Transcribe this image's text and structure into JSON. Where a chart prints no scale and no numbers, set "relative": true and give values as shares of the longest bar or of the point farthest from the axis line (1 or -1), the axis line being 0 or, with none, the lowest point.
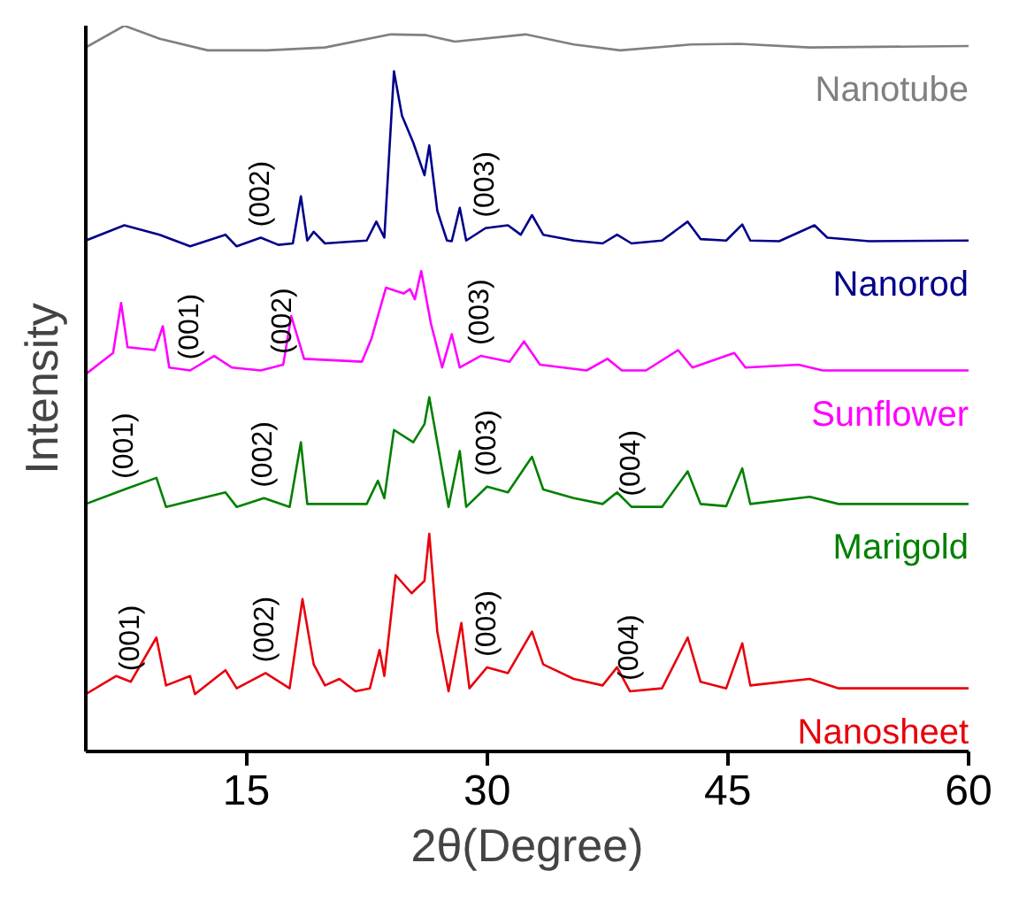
{
  "chart_data": {
    "type": "line",
    "xlabel": "2θ(Degree)",
    "ylabel": "Intensity",
    "relative": true,
    "xlim": [
      5,
      60
    ],
    "xticks": [
      15,
      30,
      45,
      60
    ],
    "tick_labels": "x",
    "grid": false,
    "marker": "none",
    "line_style": "solid",
    "series": [
      {
        "name": "Nanotube",
        "color": "#808080",
        "x": [
          5,
          7.4,
          9.6,
          12.6,
          16.3,
          19.9,
          24.0,
          26.2,
          28.0,
          32.4,
          35.4,
          38.3,
          42.7,
          45.7,
          50.1,
          60
        ],
        "values": [
          0.97,
          1.0,
          0.982,
          0.966,
          0.966,
          0.97,
          0.988,
          0.987,
          0.978,
          0.988,
          0.974,
          0.966,
          0.974,
          0.975,
          0.97,
          0.972
        ]
      },
      {
        "name": "Nanorod",
        "color": "#00008b",
        "x": [
          5,
          7.4,
          9.6,
          11.5,
          13.7,
          14.4,
          15.9,
          17.0,
          17.9,
          18.4,
          18.8,
          19.2,
          19.9,
          22.5,
          23.1,
          23.6,
          24.2,
          24.7,
          25.4,
          26.1,
          26.4,
          26.9,
          27.5,
          27.8,
          28.3,
          28.7,
          29.9,
          31.3,
          32.1,
          32.8,
          33.5,
          35.4,
          37.2,
          38.1,
          39.0,
          40.9,
          42.5,
          43.3,
          44.9,
          45.9,
          46.4,
          48.2,
          50.4,
          51.2,
          53.8,
          60
        ],
        "values": [
          0.704,
          0.725,
          0.712,
          0.696,
          0.712,
          0.696,
          0.708,
          0.698,
          0.7,
          0.765,
          0.704,
          0.716,
          0.7,
          0.704,
          0.73,
          0.708,
          0.937,
          0.876,
          0.839,
          0.794,
          0.835,
          0.745,
          0.704,
          0.703,
          0.749,
          0.704,
          0.721,
          0.725,
          0.712,
          0.739,
          0.712,
          0.704,
          0.7,
          0.712,
          0.7,
          0.704,
          0.73,
          0.706,
          0.704,
          0.726,
          0.704,
          0.703,
          0.725,
          0.708,
          0.703,
          0.704
        ]
      },
      {
        "name": "Sunflower",
        "color": "#ff00ff",
        "x": [
          5,
          6.7,
          7.2,
          7.6,
          9.3,
          9.8,
          10.2,
          11.5,
          13.0,
          14.1,
          15.9,
          17.3,
          17.8,
          18.6,
          22.2,
          22.8,
          23.7,
          24.8,
          25.2,
          25.5,
          25.9,
          26.5,
          27.2,
          27.8,
          28.3,
          29.6,
          31.4,
          32.3,
          33.3,
          36.2,
          37.5,
          38.4,
          39.9,
          41.9,
          42.8,
          45.4,
          46.1,
          49.4,
          50.9,
          60
        ],
        "values": [
          0.52,
          0.549,
          0.618,
          0.557,
          0.553,
          0.586,
          0.529,
          0.525,
          0.545,
          0.529,
          0.525,
          0.533,
          0.6,
          0.541,
          0.537,
          0.569,
          0.639,
          0.631,
          0.637,
          0.623,
          0.662,
          0.59,
          0.529,
          0.575,
          0.529,
          0.545,
          0.537,
          0.565,
          0.533,
          0.525,
          0.541,
          0.525,
          0.525,
          0.553,
          0.529,
          0.549,
          0.529,
          0.533,
          0.525,
          0.525
        ]
      },
      {
        "name": "Marigold",
        "color": "#008000",
        "x": [
          5,
          7.4,
          9.4,
          10.0,
          11.5,
          13.7,
          14.4,
          16.1,
          17.7,
          18.4,
          18.8,
          22.5,
          23.2,
          23.6,
          24.2,
          25.4,
          26.1,
          26.4,
          26.9,
          27.6,
          28.3,
          28.7,
          30.0,
          31.3,
          32.8,
          33.5,
          35.4,
          37.2,
          38.1,
          39.0,
          40.9,
          42.5,
          43.3,
          44.9,
          45.9,
          46.4,
          50.1,
          51.9,
          60
        ],
        "values": [
          0.341,
          0.361,
          0.377,
          0.337,
          0.345,
          0.357,
          0.337,
          0.349,
          0.337,
          0.426,
          0.341,
          0.341,
          0.373,
          0.349,
          0.443,
          0.426,
          0.451,
          0.488,
          0.426,
          0.337,
          0.414,
          0.337,
          0.365,
          0.357,
          0.406,
          0.361,
          0.349,
          0.341,
          0.357,
          0.337,
          0.337,
          0.386,
          0.341,
          0.338,
          0.39,
          0.341,
          0.351,
          0.341,
          0.341
        ]
      },
      {
        "name": "Nanosheet",
        "color": "#e8000b",
        "x": [
          5,
          6.9,
          7.8,
          9.4,
          10.0,
          11.5,
          11.8,
          13.7,
          14.4,
          16.2,
          17.7,
          18.5,
          19.2,
          19.9,
          20.8,
          21.8,
          22.7,
          23.3,
          23.6,
          24.3,
          25.3,
          26.1,
          26.4,
          26.9,
          27.6,
          28.4,
          28.9,
          30.0,
          31.3,
          32.8,
          33.5,
          35.4,
          37.2,
          38.1,
          38.9,
          40.9,
          42.5,
          43.3,
          44.9,
          45.9,
          46.4,
          50.1,
          51.9,
          60
        ],
        "values": [
          0.079,
          0.104,
          0.096,
          0.157,
          0.091,
          0.104,
          0.079,
          0.112,
          0.087,
          0.108,
          0.087,
          0.21,
          0.12,
          0.091,
          0.1,
          0.083,
          0.087,
          0.14,
          0.104,
          0.243,
          0.218,
          0.235,
          0.3,
          0.165,
          0.083,
          0.177,
          0.087,
          0.116,
          0.108,
          0.165,
          0.12,
          0.1,
          0.091,
          0.116,
          0.083,
          0.087,
          0.157,
          0.096,
          0.087,
          0.149,
          0.091,
          0.1,
          0.087,
          0.087
        ]
      }
    ],
    "annotations": [
      {
        "text": "(002)",
        "x": 15.9,
        "y": 0.708
      },
      {
        "text": "(003)",
        "x": 29.9,
        "y": 0.721
      },
      {
        "text": "(001)",
        "x": 11.5,
        "y": 0.525
      },
      {
        "text": "(002)",
        "x": 17.3,
        "y": 0.533
      },
      {
        "text": "(003)",
        "x": 29.6,
        "y": 0.545
      },
      {
        "text": "(001)",
        "x": 7.4,
        "y": 0.361
      },
      {
        "text": "(002)",
        "x": 16.1,
        "y": 0.349
      },
      {
        "text": "(003)",
        "x": 30.0,
        "y": 0.365
      },
      {
        "text": "(004)",
        "x": 39.0,
        "y": 0.337
      },
      {
        "text": "(001)",
        "x": 7.8,
        "y": 0.096
      },
      {
        "text": "(002)",
        "x": 16.2,
        "y": 0.108
      },
      {
        "text": "(003)",
        "x": 30.0,
        "y": 0.116
      },
      {
        "text": "(004)",
        "x": 38.9,
        "y": 0.083
      }
    ]
  }
}
